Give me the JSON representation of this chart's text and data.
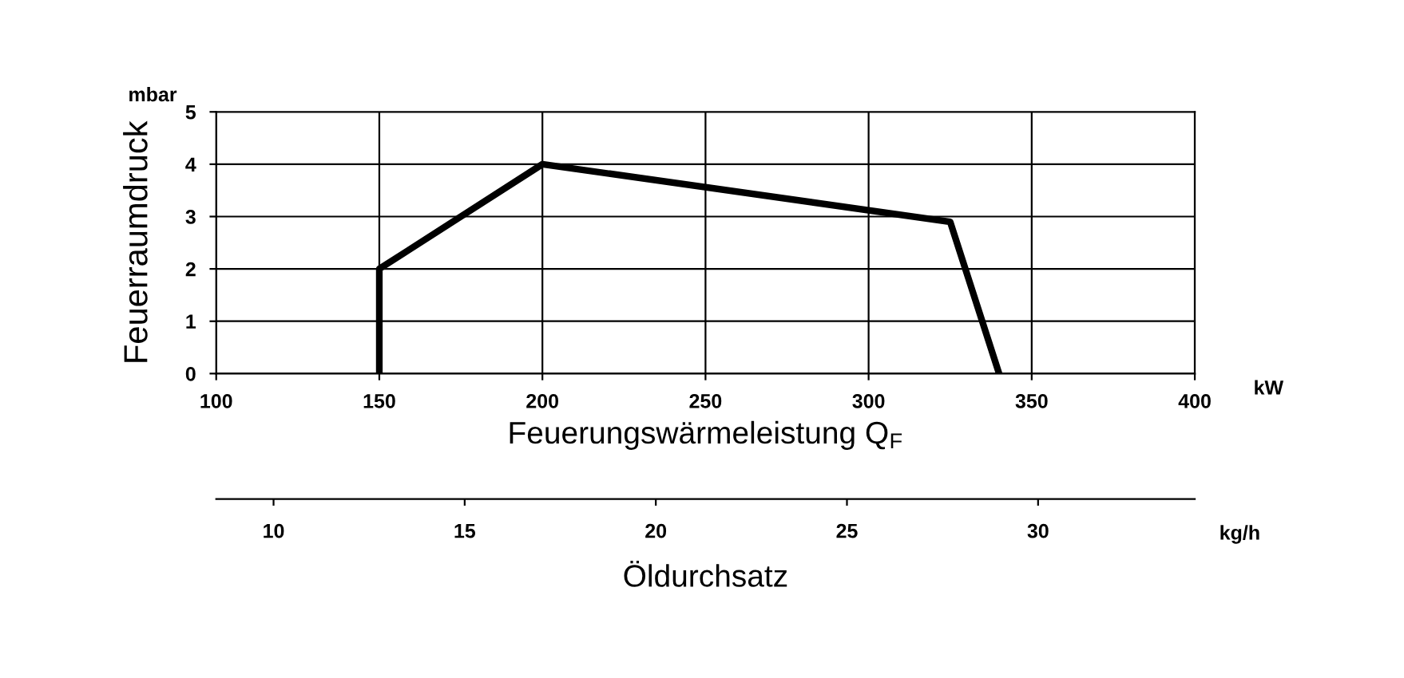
{
  "chart_data": {
    "type": "line",
    "ylabel": "Feuerraumdruck",
    "xlabel": "Feuerungswärmeleistung Q$_{F}$",
    "x2label": "Öldurchsatz",
    "annotations": [
      "mbar",
      "kW",
      "kg/h"
    ],
    "series": [
      {
        "color": "#000000",
        "x": [
          150,
          150,
          200,
          325,
          340
        ],
        "values": [
          0,
          2,
          4,
          2.9,
          0
        ]
      }
    ],
    "xlim": [
      100,
      400
    ],
    "xticks": [
      100,
      150,
      200,
      250,
      300,
      350,
      400
    ],
    "ylim": [
      0,
      5
    ],
    "yticks": [
      0,
      1,
      2,
      3,
      4,
      5
    ],
    "x2lim": [
      8.5,
      34.1
    ],
    "x2ticks": [
      10,
      15,
      20,
      25,
      30
    ],
    "grid": true,
    "legend": false,
    "marker": "none",
    "line_style": "solid"
  }
}
